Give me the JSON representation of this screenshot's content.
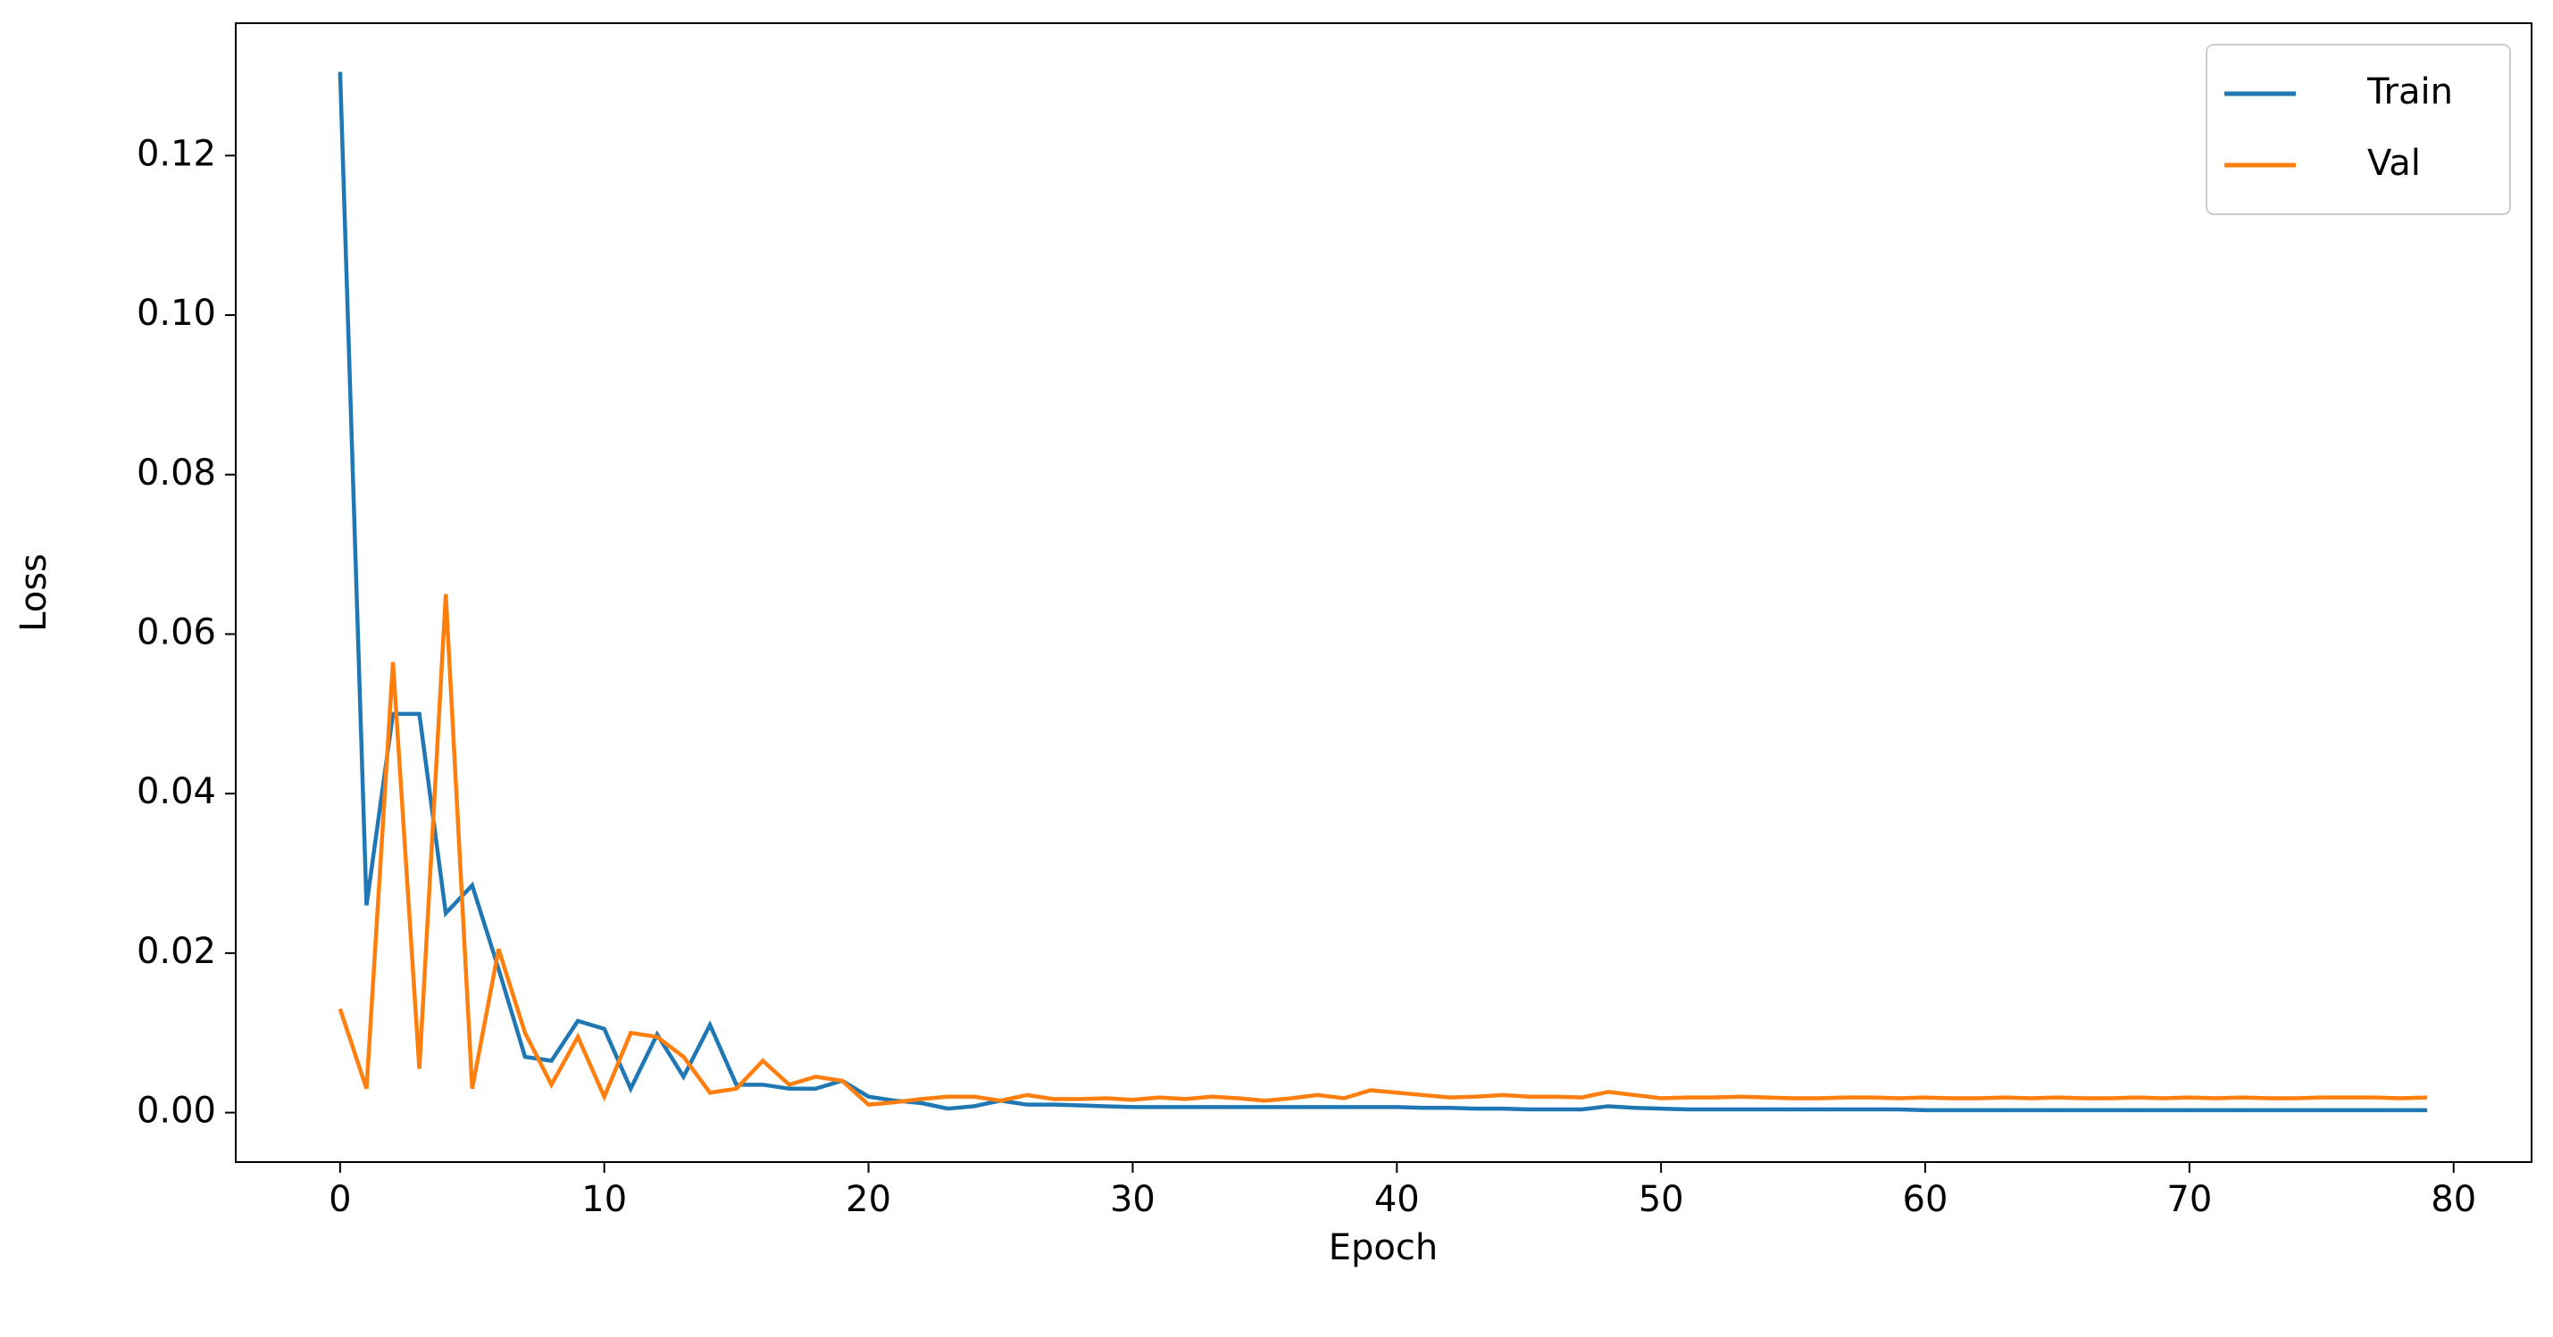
{
  "chart_data": {
    "type": "line",
    "xlabel": "Epoch",
    "ylabel": "Loss",
    "x": [
      0,
      1,
      2,
      3,
      4,
      5,
      6,
      7,
      8,
      9,
      10,
      11,
      12,
      13,
      14,
      15,
      16,
      17,
      18,
      19,
      20,
      21,
      22,
      23,
      24,
      25,
      26,
      27,
      28,
      29,
      30,
      31,
      32,
      33,
      34,
      35,
      36,
      37,
      38,
      39,
      40,
      41,
      42,
      43,
      44,
      45,
      46,
      47,
      48,
      49,
      50,
      51,
      52,
      53,
      54,
      55,
      56,
      57,
      58,
      59,
      60,
      61,
      62,
      63,
      64,
      65,
      66,
      67,
      68,
      69,
      70,
      71,
      72,
      73,
      74,
      75,
      76,
      77,
      78,
      79
    ],
    "series": [
      {
        "name": "Train",
        "color": "#1f77b4",
        "values": [
          0.1305,
          0.026,
          0.05,
          0.05,
          0.025,
          0.0285,
          0.018,
          0.007,
          0.0065,
          0.0115,
          0.0105,
          0.003,
          0.0098,
          0.0045,
          0.011,
          0.0035,
          0.0035,
          0.003,
          0.003,
          0.004,
          0.002,
          0.0015,
          0.0012,
          0.0005,
          0.0008,
          0.0015,
          0.001,
          0.001,
          0.0009,
          0.0008,
          0.0007,
          0.0007,
          0.0007,
          0.0007,
          0.0007,
          0.0007,
          0.0007,
          0.0007,
          0.0007,
          0.0007,
          0.0007,
          0.0006,
          0.0006,
          0.0005,
          0.0005,
          0.0004,
          0.0004,
          0.0004,
          0.0008,
          0.0006,
          0.0005,
          0.0004,
          0.0004,
          0.0004,
          0.0004,
          0.0004,
          0.0004,
          0.0004,
          0.0004,
          0.0004,
          0.0003,
          0.0003,
          0.0003,
          0.0003,
          0.0003,
          0.0003,
          0.0003,
          0.0003,
          0.0003,
          0.0003,
          0.0003,
          0.0003,
          0.0003,
          0.0003,
          0.0003,
          0.0003,
          0.0003,
          0.0003,
          0.0003,
          0.0003
        ]
      },
      {
        "name": "Val",
        "color": "#ff7f0e",
        "values": [
          0.013,
          0.003,
          0.0565,
          0.0055,
          0.065,
          0.003,
          0.0205,
          0.01,
          0.0035,
          0.0095,
          0.002,
          0.01,
          0.0095,
          0.007,
          0.0025,
          0.003,
          0.0065,
          0.0035,
          0.0045,
          0.004,
          0.001,
          0.0013,
          0.0017,
          0.002,
          0.002,
          0.0015,
          0.0022,
          0.0017,
          0.0017,
          0.0018,
          0.0016,
          0.0019,
          0.0017,
          0.002,
          0.0018,
          0.0015,
          0.0018,
          0.0022,
          0.0018,
          0.0028,
          0.0025,
          0.0022,
          0.0019,
          0.002,
          0.0022,
          0.002,
          0.002,
          0.0019,
          0.0026,
          0.0022,
          0.0018,
          0.0019,
          0.0019,
          0.002,
          0.0019,
          0.0018,
          0.0018,
          0.0019,
          0.0019,
          0.0018,
          0.0019,
          0.0018,
          0.0018,
          0.0019,
          0.0018,
          0.0019,
          0.0018,
          0.0018,
          0.0019,
          0.0018,
          0.0019,
          0.0018,
          0.0019,
          0.0018,
          0.0018,
          0.0019,
          0.0019,
          0.0019,
          0.0018,
          0.0019
        ]
      }
    ],
    "xlim": [
      -3.95,
      82.95
    ],
    "ylim": [
      -0.0062,
      0.1366
    ],
    "xticks": [
      0,
      10,
      20,
      30,
      40,
      50,
      60,
      70,
      80
    ],
    "yticks": [
      {
        "value": 0,
        "label": "0.00"
      },
      {
        "value": 0.02,
        "label": "0.02"
      },
      {
        "value": 0.04,
        "label": "0.04"
      },
      {
        "value": 0.06,
        "label": "0.06"
      },
      {
        "value": 0.08,
        "label": "0.08"
      },
      {
        "value": 0.1,
        "label": "0.10"
      },
      {
        "value": 0.12,
        "label": "0.12"
      }
    ],
    "legend": "upper right"
  }
}
